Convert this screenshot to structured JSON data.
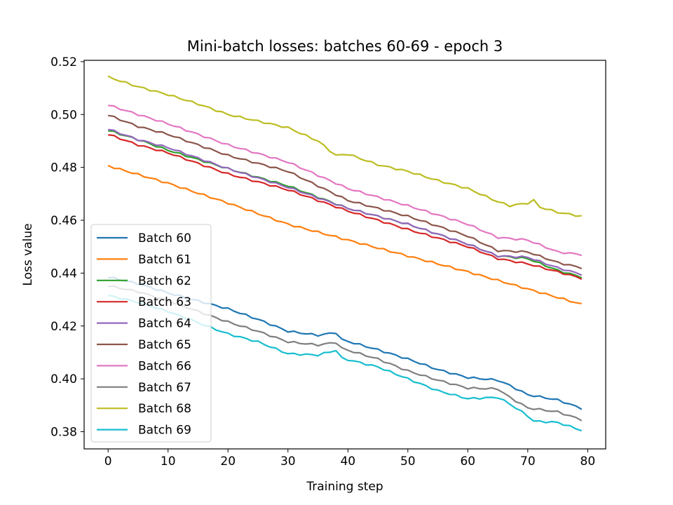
{
  "chart_data": {
    "type": "line",
    "title": "Mini-batch losses: batches 60-69 - epoch 3",
    "xlabel": "Training step",
    "ylabel": "Loss value",
    "xlim": [
      -4.0,
      83.0
    ],
    "ylim": [
      0.3735,
      0.5205
    ],
    "xticks": [
      0,
      10,
      20,
      30,
      40,
      50,
      60,
      70,
      80
    ],
    "yticks": [
      0.38,
      0.4,
      0.42,
      0.44,
      0.46,
      0.48,
      0.5,
      0.52
    ],
    "ytick_labels": [
      "0.38",
      "0.40",
      "0.42",
      "0.44",
      "0.46",
      "0.48",
      "0.50",
      "0.52"
    ],
    "grid": false,
    "legend_position": "lower-left",
    "series": [
      {
        "name": "Batch 60",
        "color": "#1f77b4",
        "points": [
          [
            0,
            0.4385
          ],
          [
            5,
            0.436
          ],
          [
            10,
            0.4325
          ],
          [
            20,
            0.4265
          ],
          [
            25,
            0.4225
          ],
          [
            30,
            0.418
          ],
          [
            35,
            0.4165
          ],
          [
            38,
            0.4175
          ],
          [
            39,
            0.4148
          ],
          [
            45,
            0.411
          ],
          [
            50,
            0.4075
          ],
          [
            55,
            0.4035
          ],
          [
            60,
            0.4005
          ],
          [
            65,
            0.3995
          ],
          [
            67,
            0.3975
          ],
          [
            70,
            0.394
          ],
          [
            75,
            0.392
          ],
          [
            79,
            0.3888
          ]
        ]
      },
      {
        "name": "Batch 61",
        "color": "#ff7f0e",
        "points": [
          [
            0,
            0.4806
          ],
          [
            10,
            0.474
          ],
          [
            20,
            0.4665
          ],
          [
            30,
            0.4585
          ],
          [
            40,
            0.4525
          ],
          [
            50,
            0.4465
          ],
          [
            60,
            0.4405
          ],
          [
            70,
            0.434
          ],
          [
            79,
            0.4282
          ]
        ]
      },
      {
        "name": "Batch 62",
        "color": "#2ca02c",
        "points": [
          [
            0,
            0.494
          ],
          [
            5,
            0.4905
          ],
          [
            10,
            0.4865
          ],
          [
            20,
            0.4795
          ],
          [
            30,
            0.473
          ],
          [
            40,
            0.4645
          ],
          [
            50,
            0.4585
          ],
          [
            60,
            0.451
          ],
          [
            65,
            0.4465
          ],
          [
            70,
            0.4455
          ],
          [
            75,
            0.441
          ],
          [
            79,
            0.4385
          ]
        ]
      },
      {
        "name": "Batch 63",
        "color": "#d62728",
        "points": [
          [
            0,
            0.4925
          ],
          [
            5,
            0.4885
          ],
          [
            10,
            0.4855
          ],
          [
            20,
            0.4775
          ],
          [
            30,
            0.4715
          ],
          [
            40,
            0.4635
          ],
          [
            50,
            0.4565
          ],
          [
            60,
            0.45
          ],
          [
            65,
            0.4455
          ],
          [
            70,
            0.4435
          ],
          [
            75,
            0.4405
          ],
          [
            79,
            0.438
          ]
        ]
      },
      {
        "name": "Batch 64",
        "color": "#9467bd",
        "points": [
          [
            0,
            0.4945
          ],
          [
            5,
            0.4905
          ],
          [
            10,
            0.4875
          ],
          [
            20,
            0.4795
          ],
          [
            30,
            0.4725
          ],
          [
            40,
            0.4645
          ],
          [
            50,
            0.4585
          ],
          [
            60,
            0.451
          ],
          [
            65,
            0.4465
          ],
          [
            70,
            0.446
          ],
          [
            75,
            0.442
          ],
          [
            79,
            0.4395
          ]
        ]
      },
      {
        "name": "Batch 65",
        "color": "#8c564b",
        "points": [
          [
            0,
            0.4998
          ],
          [
            5,
            0.4955
          ],
          [
            10,
            0.4925
          ],
          [
            20,
            0.4845
          ],
          [
            30,
            0.4785
          ],
          [
            40,
            0.4675
          ],
          [
            50,
            0.4615
          ],
          [
            60,
            0.454
          ],
          [
            65,
            0.4485
          ],
          [
            70,
            0.448
          ],
          [
            75,
            0.444
          ],
          [
            79,
            0.442
          ]
        ]
      },
      {
        "name": "Batch 66",
        "color": "#e377c2",
        "points": [
          [
            0,
            0.5036
          ],
          [
            5,
            0.5
          ],
          [
            10,
            0.4965
          ],
          [
            20,
            0.4885
          ],
          [
            30,
            0.482
          ],
          [
            40,
            0.472
          ],
          [
            50,
            0.4655
          ],
          [
            60,
            0.4585
          ],
          [
            65,
            0.4535
          ],
          [
            70,
            0.4525
          ],
          [
            75,
            0.448
          ],
          [
            79,
            0.447
          ]
        ]
      },
      {
        "name": "Batch 67",
        "color": "#7f7f7f",
        "points": [
          [
            0,
            0.4352
          ],
          [
            5,
            0.433
          ],
          [
            10,
            0.4295
          ],
          [
            20,
            0.4215
          ],
          [
            25,
            0.418
          ],
          [
            30,
            0.414
          ],
          [
            35,
            0.4128
          ],
          [
            38,
            0.4138
          ],
          [
            39,
            0.4115
          ],
          [
            45,
            0.4075
          ],
          [
            50,
            0.403
          ],
          [
            55,
            0.3995
          ],
          [
            60,
            0.3965
          ],
          [
            65,
            0.3962
          ],
          [
            67,
            0.393
          ],
          [
            70,
            0.389
          ],
          [
            75,
            0.3875
          ],
          [
            79,
            0.3845
          ]
        ]
      },
      {
        "name": "Batch 68",
        "color": "#bcbd22",
        "points": [
          [
            0,
            0.5142
          ],
          [
            5,
            0.5105
          ],
          [
            10,
            0.5075
          ],
          [
            15,
            0.504
          ],
          [
            20,
            0.5
          ],
          [
            30,
            0.495
          ],
          [
            35,
            0.49
          ],
          [
            38,
            0.4845
          ],
          [
            40,
            0.485
          ],
          [
            45,
            0.481
          ],
          [
            50,
            0.4785
          ],
          [
            55,
            0.475
          ],
          [
            60,
            0.472
          ],
          [
            65,
            0.467
          ],
          [
            67,
            0.4655
          ],
          [
            70,
            0.4665
          ],
          [
            71,
            0.4675
          ],
          [
            72,
            0.465
          ],
          [
            75,
            0.463
          ],
          [
            79,
            0.4615
          ]
        ]
      },
      {
        "name": "Batch 69",
        "color": "#17becf",
        "points": [
          [
            0,
            0.4315
          ],
          [
            5,
            0.429
          ],
          [
            10,
            0.4255
          ],
          [
            20,
            0.417
          ],
          [
            25,
            0.414
          ],
          [
            30,
            0.4095
          ],
          [
            35,
            0.409
          ],
          [
            38,
            0.4108
          ],
          [
            39,
            0.4078
          ],
          [
            45,
            0.4045
          ],
          [
            50,
            0.4
          ],
          [
            55,
            0.3955
          ],
          [
            60,
            0.3925
          ],
          [
            65,
            0.393
          ],
          [
            67,
            0.3905
          ],
          [
            70,
            0.386
          ],
          [
            71,
            0.384
          ],
          [
            75,
            0.3835
          ],
          [
            79,
            0.3805
          ]
        ]
      }
    ]
  }
}
